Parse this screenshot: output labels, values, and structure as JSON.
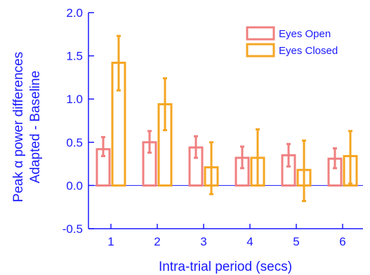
{
  "chart_data": {
    "type": "bar",
    "xlabel": "Intra-trial period (secs)",
    "ylabel_lines": [
      "Peak α power differences",
      "Adapted - Baseline"
    ],
    "categories": [
      "1",
      "2",
      "3",
      "4",
      "5",
      "6"
    ],
    "ylim": [
      -0.5,
      2.0
    ],
    "yticks": [
      "-0.5",
      "0.0",
      "0.5",
      "1.0",
      "1.5",
      "2.0"
    ],
    "grid": false,
    "legend_position": "top-right",
    "series": [
      {
        "name": "Eyes Open",
        "color": "#f08080",
        "values": [
          0.42,
          0.5,
          0.44,
          0.32,
          0.35,
          0.31
        ],
        "err_low": [
          0.34,
          0.38,
          0.32,
          0.2,
          0.22,
          0.2
        ],
        "err_high": [
          0.56,
          0.63,
          0.57,
          0.45,
          0.48,
          0.43
        ]
      },
      {
        "name": "Eyes Closed",
        "color": "#f5a623",
        "values": [
          1.42,
          0.94,
          0.21,
          0.32,
          0.18,
          0.34
        ],
        "err_low": [
          1.1,
          0.64,
          -0.1,
          0.0,
          -0.18,
          0.02
        ],
        "err_high": [
          1.73,
          1.24,
          0.5,
          0.65,
          0.52,
          0.63
        ]
      }
    ]
  }
}
